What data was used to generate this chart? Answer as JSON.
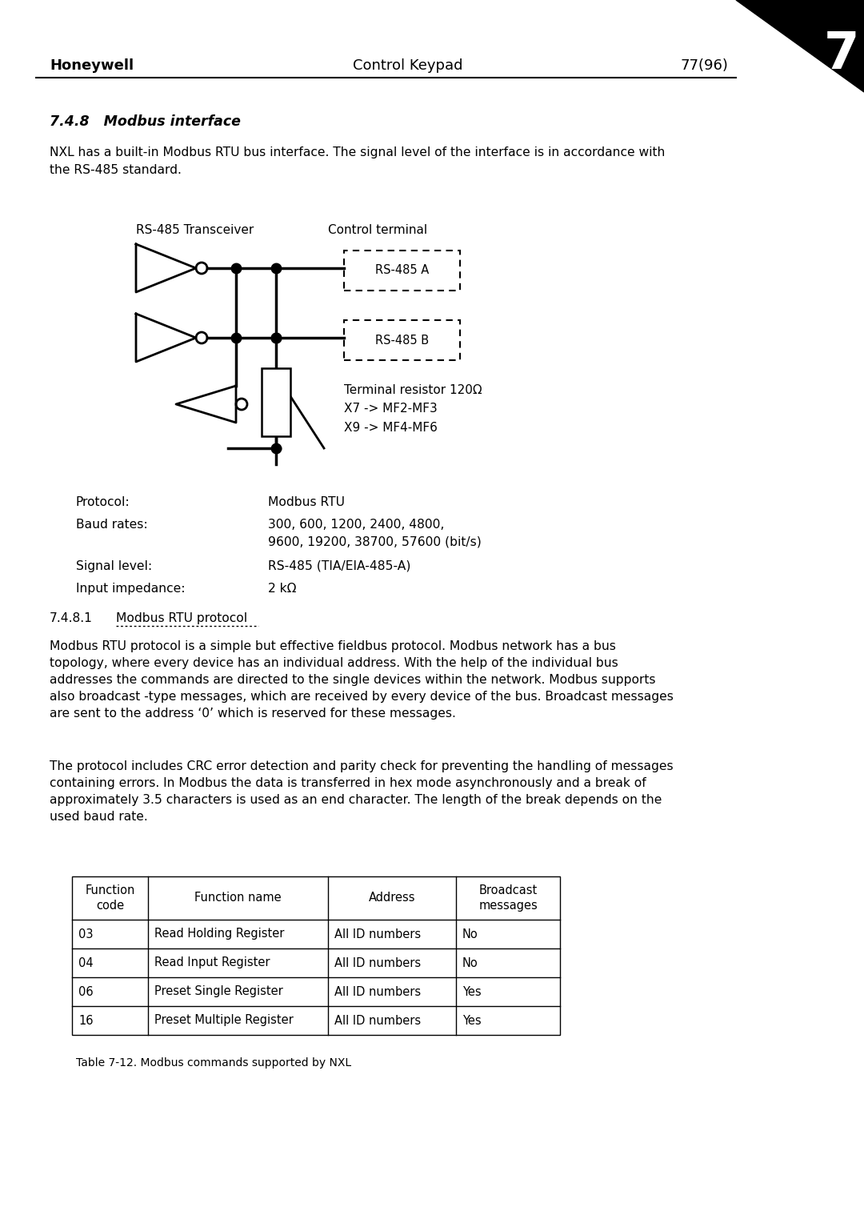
{
  "page_title": "Control Keypad",
  "company": "Honeywell",
  "page_num": "77(96)",
  "chapter_num": "7",
  "section_title": "7.4.8   Modbus interface",
  "section_intro": "NXL has a built-in Modbus RTU bus interface. The signal level of the interface is in accordance with\nthe RS-485 standard.",
  "diagram_label_left": "RS-485 Transceiver",
  "diagram_label_right": "Control terminal",
  "rs485a_label": "RS-485 A",
  "rs485b_label": "RS-485 B",
  "resistor_label": "Terminal resistor 120Ω\nX7 -> MF2-MF3\nX9 -> MF4-MF6",
  "protocol_label": "Protocol:",
  "protocol_value": "Modbus RTU",
  "baud_label": "Baud rates:",
  "baud_value": "300, 600, 1200, 2400, 4800,\n9600, 19200, 38700, 57600 (bit/s)",
  "signal_label": "Signal level:",
  "signal_value": "RS-485 (TIA/EIA-485-A)",
  "impedance_label": "Input impedance:",
  "impedance_value": "2 kΩ",
  "subsection_num": "7.4.8.1",
  "subsection_name": "Modbus RTU protocol",
  "para1": "Modbus RTU protocol is a simple but effective fieldbus protocol. Modbus network has a bus\ntopology, where every device has an individual address. With the help of the individual bus\naddresses the commands are directed to the single devices within the network. Modbus supports\nalso broadcast -type messages, which are received by every device of the bus. Broadcast messages\nare sent to the address ‘0’ which is reserved for these messages.",
  "para2": "The protocol includes CRC error detection and parity check for preventing the handling of messages\ncontaining errors. In Modbus the data is transferred in hex mode asynchronously and a break of\napproximately 3.5 characters is used as an end character. The length of the break depends on the\nused baud rate.",
  "table_headers": [
    "Function\ncode",
    "Function name",
    "Address",
    "Broadcast\nmessages"
  ],
  "table_rows": [
    [
      "03",
      "Read Holding Register",
      "All ID numbers",
      "No"
    ],
    [
      "04",
      "Read Input Register",
      "All ID numbers",
      "No"
    ],
    [
      "06",
      "Preset Single Register",
      "All ID numbers",
      "Yes"
    ],
    [
      "16",
      "Preset Multiple Register",
      "All ID numbers",
      "Yes"
    ]
  ],
  "table_caption": "Table 7-12. Modbus commands supported by NXL",
  "bg_color": "#ffffff",
  "text_color": "#000000",
  "line_color": "#000000",
  "corner_triangle_color": "#000000"
}
